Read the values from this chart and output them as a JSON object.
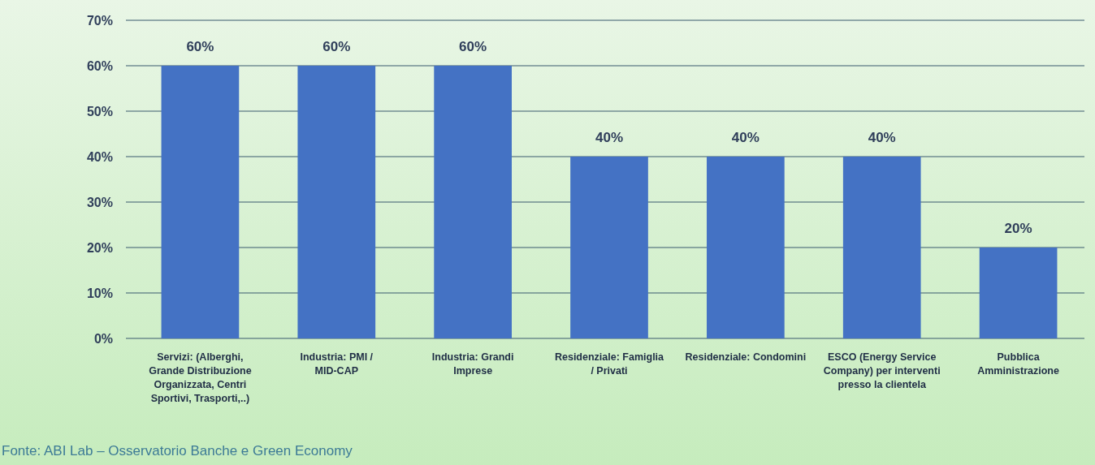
{
  "chart_data": {
    "type": "bar",
    "categories": [
      "Servizi: (Alberghi, Grande Distribuzione Organizzata, Centri Sportivi, Trasporti,..)",
      "Industria: PMI / MID-CAP",
      "Industria: Grandi Imprese",
      "Residenziale: Famiglia / Privati",
      "Residenziale: Condomini",
      "ESCO (Energy Service Company) per interventi presso la clientela",
      "Pubblica Amministrazione"
    ],
    "values": [
      60,
      60,
      60,
      40,
      40,
      40,
      20
    ],
    "value_labels": [
      "60%",
      "60%",
      "60%",
      "40%",
      "40%",
      "40%",
      "20%"
    ],
    "color": "#4472c4",
    "ylim": [
      0,
      70
    ],
    "yticks": [
      {
        "value": 0,
        "label": "0%"
      },
      {
        "value": 10,
        "label": "10%"
      },
      {
        "value": 20,
        "label": "20%"
      },
      {
        "value": 30,
        "label": "30%"
      },
      {
        "value": 40,
        "label": "40%"
      },
      {
        "value": 50,
        "label": "50%"
      },
      {
        "value": 60,
        "label": "60%"
      },
      {
        "value": 70,
        "label": "70%"
      }
    ],
    "grid": "y",
    "annotations": [
      "Fonte: ABI Lab – Osservatorio Banche e Green Economy"
    ]
  }
}
